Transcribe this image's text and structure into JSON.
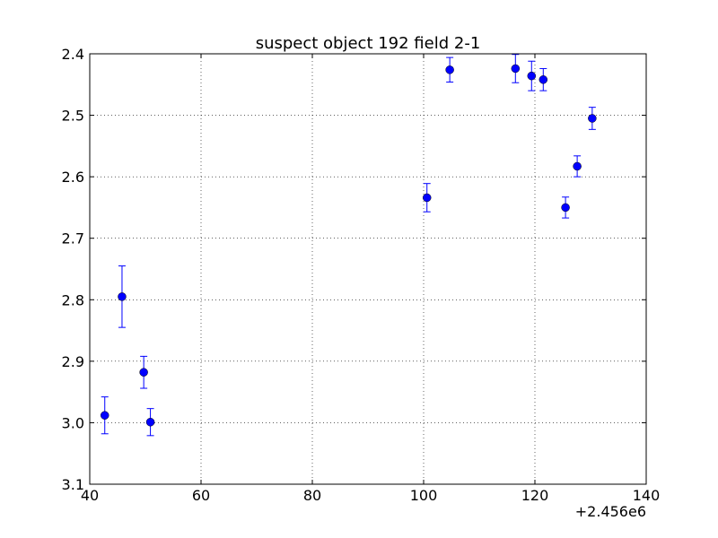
{
  "chart_data": {
    "type": "scatter",
    "title": "suspect object 192 field 2-1",
    "xlabel": "",
    "ylabel": "",
    "x_offset_label": "+2.456e6",
    "xlim": [
      40,
      140
    ],
    "ylim": [
      3.1,
      2.4
    ],
    "y_inverted": true,
    "grid": true,
    "x_ticks": [
      40,
      60,
      80,
      100,
      120,
      140
    ],
    "x_tick_labels": [
      "40",
      "60",
      "80",
      "100",
      "120",
      "140"
    ],
    "y_ticks": [
      2.4,
      2.5,
      2.6,
      2.7,
      2.8,
      2.9,
      3.0,
      3.1
    ],
    "y_tick_labels": [
      "2.4",
      "2.5",
      "2.6",
      "2.7",
      "2.8",
      "2.9",
      "3.0",
      "3.1"
    ],
    "marker_color": "#0000ff",
    "series": [
      {
        "points": [
          {
            "x": 42.7,
            "y": 2.988,
            "err": 0.03
          },
          {
            "x": 45.8,
            "y": 2.795,
            "err": 0.05
          },
          {
            "x": 49.7,
            "y": 2.918,
            "err": 0.026
          },
          {
            "x": 50.9,
            "y": 2.999,
            "err": 0.022
          },
          {
            "x": 100.6,
            "y": 2.634,
            "err": 0.023
          },
          {
            "x": 104.7,
            "y": 2.426,
            "err": 0.02
          },
          {
            "x": 116.5,
            "y": 2.424,
            "err": 0.023
          },
          {
            "x": 119.4,
            "y": 2.436,
            "err": 0.024
          },
          {
            "x": 121.5,
            "y": 2.442,
            "err": 0.018
          },
          {
            "x": 125.5,
            "y": 2.65,
            "err": 0.017
          },
          {
            "x": 127.6,
            "y": 2.583,
            "err": 0.017
          },
          {
            "x": 130.3,
            "y": 2.505,
            "err": 0.018
          }
        ]
      }
    ]
  }
}
